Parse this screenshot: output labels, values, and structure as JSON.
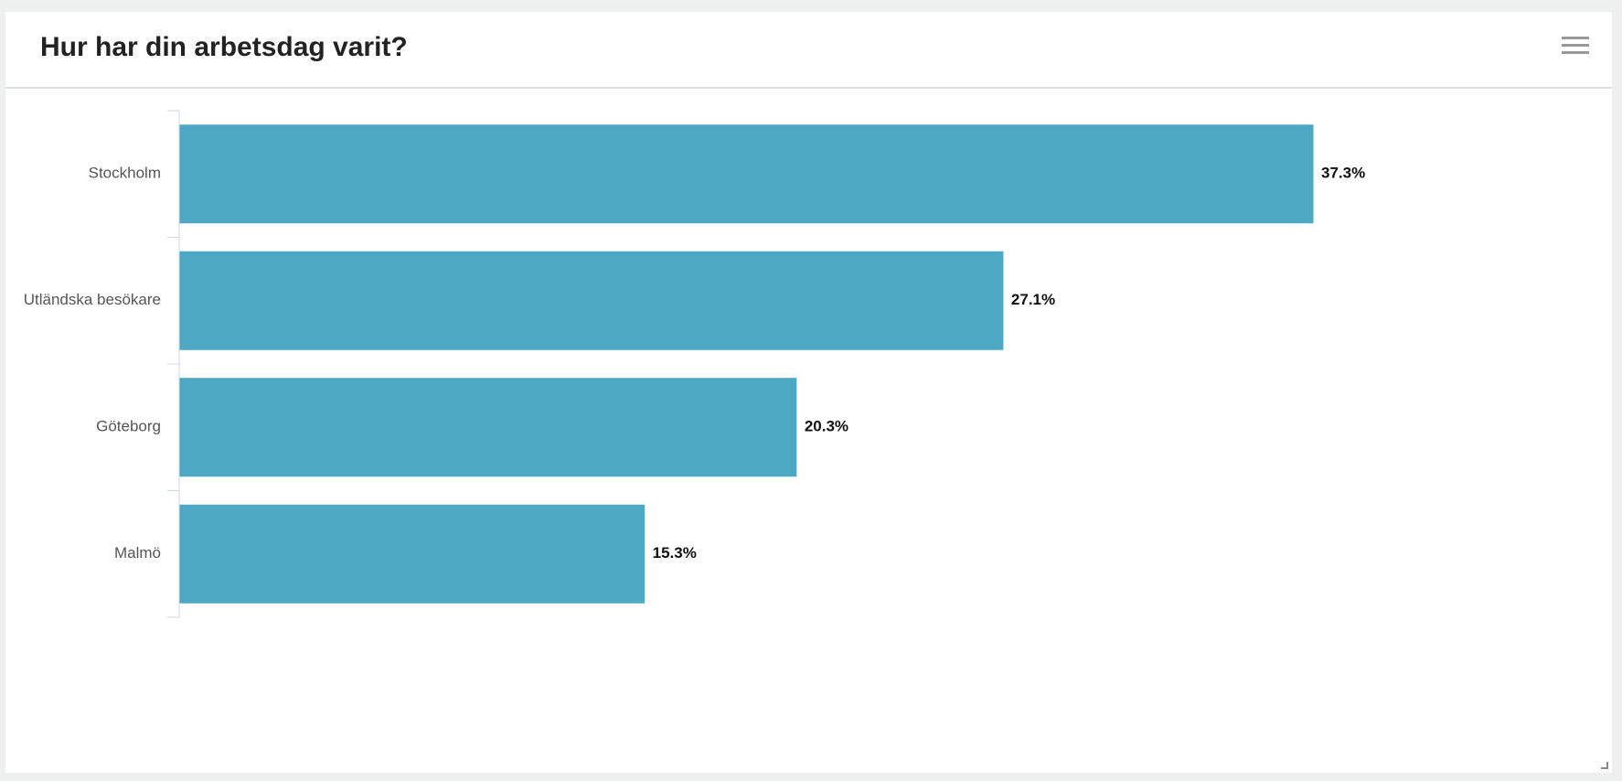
{
  "header": {
    "title": "Hur har din arbetsdag varit?"
  },
  "icons": {
    "menu": "hamburger-menu-icon",
    "resize": "resize-handle-icon"
  },
  "colors": {
    "bar": "#4ca8c3",
    "background": "#eef0ef",
    "card": "#ffffff"
  },
  "chart_data": {
    "type": "bar",
    "orientation": "horizontal",
    "categories": [
      "Stockholm",
      "Utländska besökare",
      "Göteborg",
      "Malmö"
    ],
    "values": [
      37.3,
      27.1,
      20.3,
      15.3
    ],
    "value_labels": [
      "37.3%",
      "27.1%",
      "20.3%",
      "15.3%"
    ],
    "unit": "%",
    "title": "Hur har din arbetsdag varit?",
    "xlabel": "",
    "ylabel": "",
    "xlim": [
      0,
      37.3
    ],
    "grid": false,
    "legend": "none"
  }
}
